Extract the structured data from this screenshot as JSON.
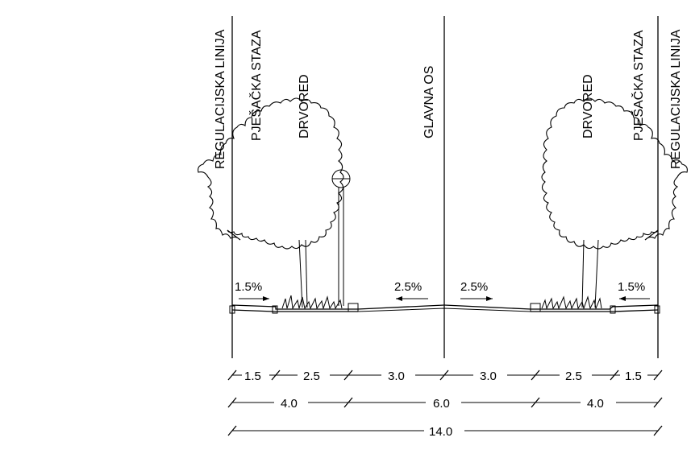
{
  "labels": {
    "regulation_line_left": "REGULACIJSKA LINIJA",
    "footpath_left": "PJEŠAČKA STAZA",
    "tree_row_left": "DRVORED",
    "main_axis": "GLAVNA OS",
    "tree_row_right": "DRVORED",
    "footpath_right": "PJEŠAČKA STAZA",
    "regulation_line_right": "REGULACIJSKA LINIJA"
  },
  "slopes": {
    "footpath_left": "1.5%",
    "carriageway_left": "2.5%",
    "carriageway_right": "2.5%",
    "footpath_right": "1.5%"
  },
  "dimensions": {
    "row1": [
      "1.5",
      "2.5",
      "3.0",
      "3.0",
      "2.5",
      "1.5"
    ],
    "row2": [
      "4.0",
      "6.0",
      "4.0"
    ],
    "row3": [
      "14.0"
    ]
  }
}
